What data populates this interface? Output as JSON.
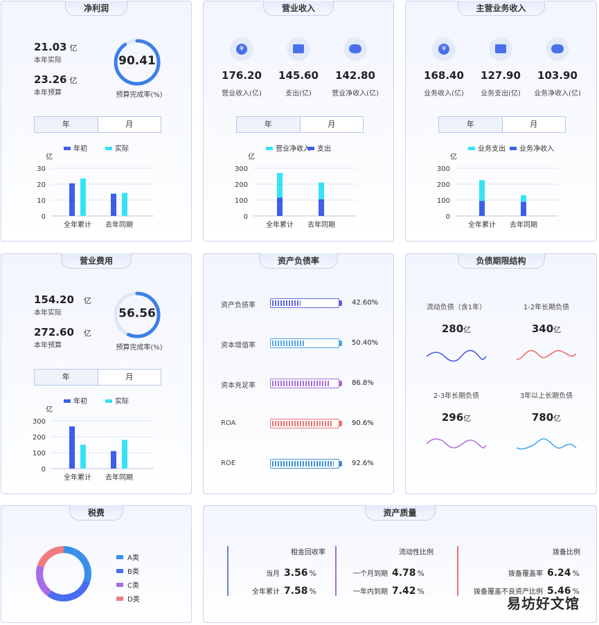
{
  "net_profit": {
    "title": "净利润",
    "actual_value": "21.03",
    "actual_unit": "亿",
    "actual_label": "本年实际",
    "budget_value": "23.26",
    "budget_unit": "亿",
    "budget_label": "本年预算",
    "rate": "90.41",
    "rate_fraction": 0.9041,
    "rate_label": "预算完成率(%)",
    "toggle": [
      "年",
      "月"
    ],
    "legend": [
      "年初",
      "实际"
    ],
    "chart_data": {
      "type": "bar",
      "ylabel": "亿",
      "ylim": [
        0,
        30
      ],
      "yticks": [
        "30",
        "20",
        "10",
        "0"
      ],
      "categories": [
        "全年累计",
        "去年同期"
      ],
      "series": [
        {
          "name": "年初",
          "values": [
            20.5,
            14
          ]
        },
        {
          "name": "实际",
          "values": [
            23.5,
            14.5
          ]
        }
      ]
    }
  },
  "revenue": {
    "title": "营业收入",
    "metrics": [
      {
        "icon": "yuan-icon",
        "value": "176.20",
        "label": "营业收入(亿)"
      },
      {
        "icon": "wallet-icon",
        "value": "145.60",
        "label": "支出(亿)"
      },
      {
        "icon": "piggy-bank-icon",
        "value": "142.80",
        "label": "营业净收入(亿)"
      }
    ],
    "toggle": [
      "年",
      "月"
    ],
    "legend": [
      "营业净收入",
      "支出"
    ],
    "chart_data": {
      "type": "bar",
      "stacked": true,
      "ylabel": "亿",
      "ylim": [
        0,
        300
      ],
      "yticks": [
        "300",
        "200",
        "100",
        "0"
      ],
      "categories": [
        "全年累计",
        "去年同期"
      ],
      "series": [
        {
          "name": "营业净收入",
          "values": [
            115,
            105
          ]
        },
        {
          "name": "支出",
          "values": [
            155,
            105
          ]
        }
      ]
    }
  },
  "main_revenue": {
    "title": "主营业务收入",
    "metrics": [
      {
        "icon": "yuan-icon",
        "value": "168.40",
        "label": "业务收入(亿)"
      },
      {
        "icon": "wallet-icon",
        "value": "127.90",
        "label": "业务支出(亿)"
      },
      {
        "icon": "piggy-bank-icon",
        "value": "103.90",
        "label": "业务净收入(亿)"
      }
    ],
    "toggle": [
      "年",
      "月"
    ],
    "legend": [
      "业务支出",
      "业务净收入"
    ],
    "chart_data": {
      "type": "bar",
      "stacked": true,
      "ylabel": "亿",
      "ylim": [
        0,
        300
      ],
      "yticks": [
        "300",
        "200",
        "100",
        "0"
      ],
      "categories": [
        "全年累计",
        "去年同期"
      ],
      "series": [
        {
          "name": "业务支出",
          "values": [
            95,
            90
          ]
        },
        {
          "name": "业务净收入",
          "values": [
            130,
            40
          ]
        }
      ]
    }
  },
  "op_expense": {
    "title": "营业费用",
    "actual_value": "154.20",
    "actual_unit": "亿",
    "actual_label": "本年实际",
    "budget_value": "272.60",
    "budget_unit": "亿",
    "budget_label": "本年预算",
    "rate": "56.56",
    "rate_fraction": 0.5656,
    "rate_label": "预算完成率(%)",
    "toggle": [
      "年",
      "月"
    ],
    "legend": [
      "年初",
      "实际"
    ],
    "chart_data": {
      "type": "bar",
      "ylabel": "亿",
      "ylim": [
        0,
        300
      ],
      "yticks": [
        "300",
        "200",
        "100",
        "0"
      ],
      "categories": [
        "全年累计",
        "去年同期"
      ],
      "series": [
        {
          "name": "年初",
          "values": [
            265,
            110
          ]
        },
        {
          "name": "实际",
          "values": [
            150,
            180
          ]
        }
      ]
    }
  },
  "asset_liability": {
    "title": "资产负债率",
    "rows": [
      {
        "label": "资产负债率",
        "value": "42.60%",
        "fraction": 0.426,
        "color": "#5b63e0"
      },
      {
        "label": "资本增值率",
        "value": "50.40%",
        "fraction": 0.504,
        "color": "#4aa3e8"
      },
      {
        "label": "资本充足率",
        "value": "86.8%",
        "fraction": 0.868,
        "color": "#a66be0"
      },
      {
        "label": "ROA",
        "value": "90.6%",
        "fraction": 0.906,
        "color": "#f07070"
      },
      {
        "label": "ROE",
        "value": "92.6%",
        "fraction": 0.926,
        "color": "#3c8fd8"
      }
    ]
  },
  "debt_term": {
    "title": "负债期限结构",
    "items": [
      {
        "label": "流动负债（含1年）",
        "value": "280",
        "unit": "亿",
        "color": "#4a5ae0"
      },
      {
        "label": "1-2年长期负债",
        "value": "340",
        "unit": "亿",
        "color": "#f06a6a"
      },
      {
        "label": "2-3年长期负债",
        "value": "296",
        "unit": "亿",
        "color": "#b074e0"
      },
      {
        "label": "3年以上长期负债",
        "value": "780",
        "unit": "亿",
        "color": "#4aa8e8"
      }
    ]
  },
  "tax": {
    "title": "税费",
    "legend": [
      {
        "name": "A类",
        "color": "#3b8fe8"
      },
      {
        "name": "B类",
        "color": "#4a6cf0"
      },
      {
        "name": "C类",
        "color": "#a86ce8"
      },
      {
        "name": "D类",
        "color": "#f07a80"
      }
    ],
    "chart_data": {
      "type": "pie",
      "categories": [
        "A类",
        "B类",
        "C类",
        "D类"
      ],
      "values": [
        30,
        30,
        20,
        20
      ]
    }
  },
  "asset_quality": {
    "title": "资产质量",
    "groups": [
      {
        "title": "租金回收率",
        "color": "#6c7ae6",
        "rows": [
          {
            "label": "当月",
            "value": "3.56",
            "unit": "%"
          },
          {
            "label": "全年累计",
            "value": "7.58",
            "unit": "%"
          }
        ]
      },
      {
        "title": "流动性比例",
        "color": "#a66be0",
        "rows": [
          {
            "label": "一个月到期",
            "value": "4.78",
            "unit": "%"
          },
          {
            "label": "一年内到期",
            "value": "7.42",
            "unit": "%"
          }
        ]
      },
      {
        "title": "拨备比例",
        "color": "#f07070",
        "rows": [
          {
            "label": "拨备覆盖率",
            "value": "6.24",
            "unit": "%"
          },
          {
            "label": "拨备覆盖不良资产比例",
            "value": "5.46",
            "unit": "%"
          }
        ]
      }
    ]
  },
  "watermark": "易坊好文馆"
}
